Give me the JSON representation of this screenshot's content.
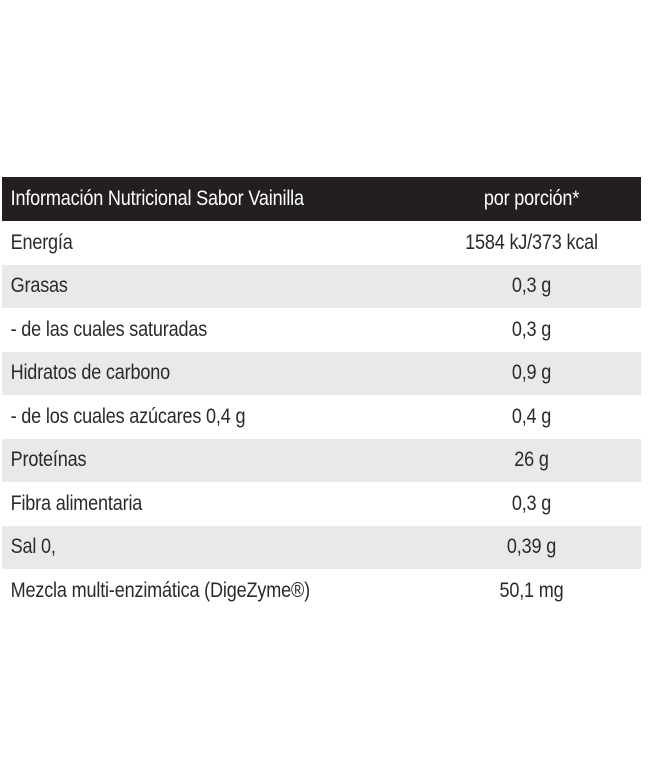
{
  "table": {
    "header": {
      "label": "Información Nutricional Sabor Vainilla",
      "value": "por porción*"
    },
    "rows": [
      {
        "label": "Energía",
        "value": "1584 kJ/373 kcal"
      },
      {
        "label": "Grasas",
        "value": "0,3 g"
      },
      {
        "label": "- de las cuales saturadas",
        "value": "0,3 g"
      },
      {
        "label": "Hidratos de carbono",
        "value": "0,9 g"
      },
      {
        "label": "- de los cuales azúcares 0,4 g",
        "value": "0,4 g"
      },
      {
        "label": "Proteínas",
        "value": "26 g"
      },
      {
        "label": "Fibra alimentaria",
        "value": "0,3 g"
      },
      {
        "label": "Sal 0,",
        "value": "0,39 g"
      },
      {
        "label": "Mezcla multi-enzimática (DigeZyme®)",
        "value": "50,1 mg"
      }
    ]
  },
  "colors": {
    "header_background": "#231f20",
    "stripe_background": "#e9e9e9",
    "text": "#2a2a2a"
  }
}
